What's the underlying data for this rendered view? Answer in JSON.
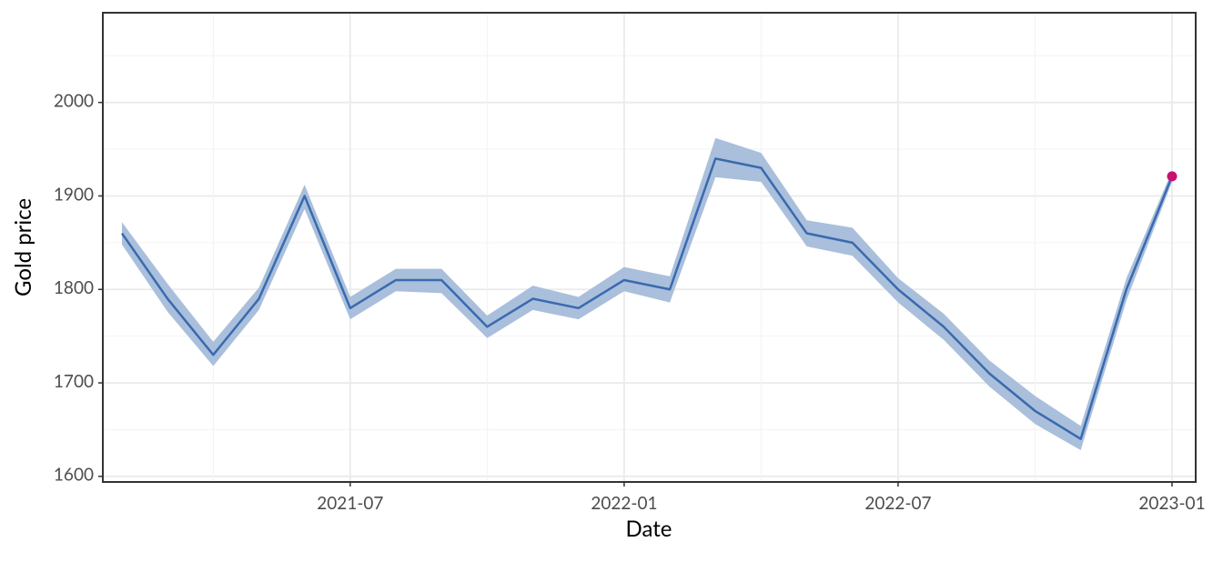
{
  "chart_data": {
    "type": "line",
    "x_label": "Date",
    "y_label": "Gold price",
    "x": [
      "2021-02",
      "2021-03",
      "2021-04",
      "2021-05",
      "2021-06",
      "2021-07",
      "2021-08",
      "2021-09",
      "2021-10",
      "2021-11",
      "2021-12",
      "2022-01",
      "2022-02",
      "2022-03",
      "2022-04",
      "2022-05",
      "2022-06",
      "2022-07",
      "2022-08",
      "2022-09",
      "2022-10",
      "2022-11",
      "2022-12",
      "2023-01"
    ],
    "series": [
      {
        "name": "Gold price",
        "color": "#3a6aae",
        "values": [
          1860,
          1790,
          1730,
          1790,
          1900,
          1780,
          1810,
          1810,
          1760,
          1790,
          1780,
          1810,
          1800,
          1940,
          1930,
          1860,
          1850,
          1800,
          1760,
          1710,
          1670,
          1640,
          1800,
          1921
        ],
        "lower": [
          1848,
          1776,
          1718,
          1778,
          1886,
          1768,
          1798,
          1796,
          1748,
          1778,
          1768,
          1798,
          1786,
          1920,
          1915,
          1846,
          1836,
          1786,
          1746,
          1696,
          1656,
          1628,
          1788,
          1915
        ],
        "upper": [
          1872,
          1806,
          1744,
          1802,
          1912,
          1792,
          1822,
          1822,
          1772,
          1804,
          1792,
          1824,
          1814,
          1962,
          1946,
          1874,
          1866,
          1812,
          1774,
          1724,
          1686,
          1654,
          1812,
          1927
        ],
        "band_color": "#a9bfdc"
      }
    ],
    "highlight_last": true,
    "highlight_color": "#c8106e",
    "xlim": [
      "2021-02",
      "2023-01"
    ],
    "xticks": [
      "2021-07",
      "2022-01",
      "2022-07",
      "2023-01"
    ],
    "ylim": [
      1594,
      2096
    ],
    "yticks": [
      1600,
      1700,
      1800,
      1900,
      2000
    ],
    "grid": true
  }
}
